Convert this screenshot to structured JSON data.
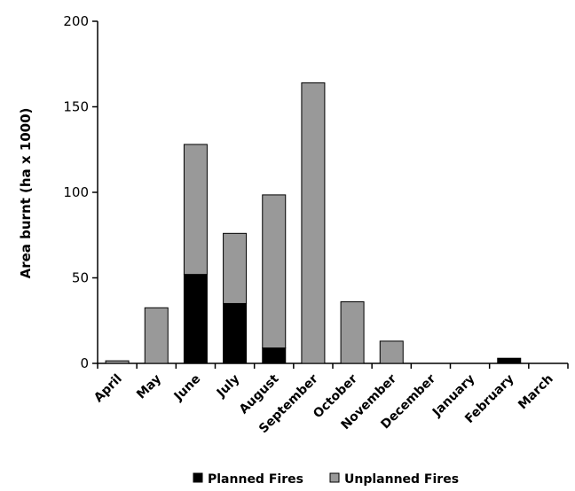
{
  "chart_data": {
    "type": "bar",
    "stacked": true,
    "ylabel": "Area burnt (ha x 1000)",
    "ylim": [
      0,
      200
    ],
    "yticks": [
      0,
      50,
      100,
      150,
      200
    ],
    "categories": [
      "April",
      "May",
      "June",
      "July",
      "August",
      "September",
      "October",
      "November",
      "December",
      "January",
      "February",
      "March"
    ],
    "series": [
      {
        "name": "Planned Fires",
        "color": "#000000",
        "values": [
          0,
          0,
          52,
          35,
          9,
          0,
          0,
          0,
          0,
          0,
          3,
          0
        ]
      },
      {
        "name": "Unplanned Fires",
        "color": "#999999",
        "values": [
          1.5,
          32.5,
          76,
          41,
          89.5,
          164,
          36,
          13,
          0,
          0,
          0,
          0
        ]
      }
    ],
    "legend_position": "bottom",
    "grid": false
  }
}
